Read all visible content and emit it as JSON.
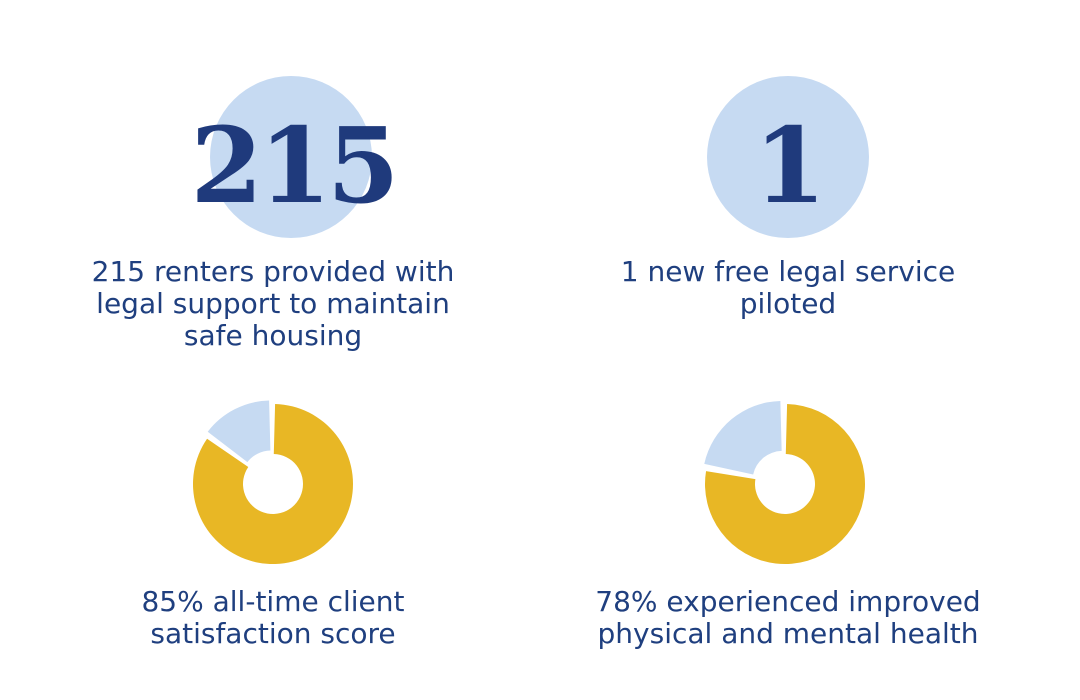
{
  "colors": {
    "text": "#1f3f7f",
    "number": "#1f3a7c",
    "circle": "#c6daf2",
    "gold": "#e8b725",
    "light": "#c6daf2"
  },
  "stats": [
    {
      "number": "215",
      "caption": [
        "215 renters provided with",
        "legal support to maintain",
        "safe housing"
      ]
    },
    {
      "number": "1",
      "caption": [
        "1 new free legal service",
        "piloted"
      ]
    }
  ],
  "chart_data": [
    {
      "type": "pie",
      "values": [
        85,
        15
      ],
      "caption": [
        "85% all-time client",
        "satisfaction score"
      ]
    },
    {
      "type": "pie",
      "values": [
        78,
        22
      ],
      "caption": [
        "78% experienced improved",
        "physical and mental health"
      ]
    }
  ]
}
